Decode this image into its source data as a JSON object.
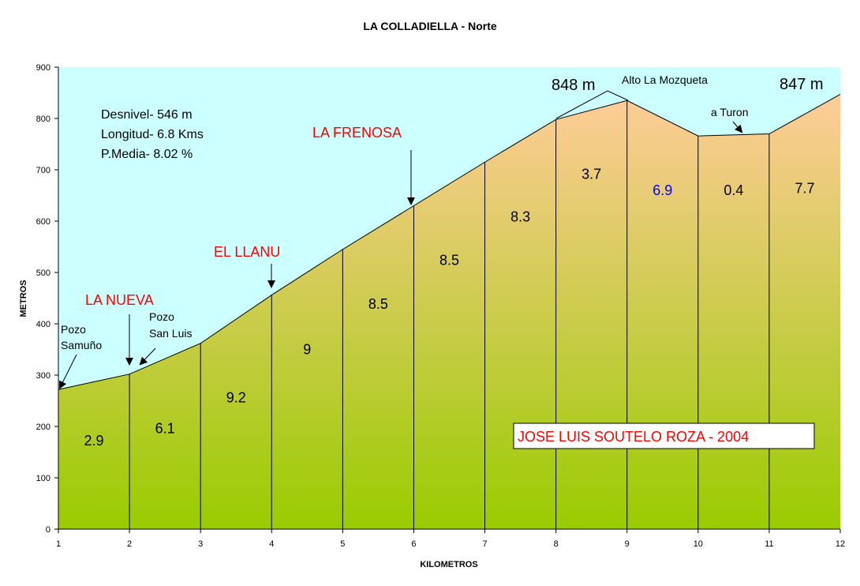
{
  "chart_data": {
    "type": "area",
    "title": "LA COLLADIELLA - Norte",
    "xlabel": "KILOMETROS",
    "ylabel": "METROS",
    "xlim": [
      1,
      12
    ],
    "ylim": [
      0,
      900
    ],
    "x_ticks": [
      "1",
      "2",
      "3",
      "4",
      "5",
      "6",
      "7",
      "8",
      "9",
      "10",
      "11",
      "12"
    ],
    "y_ticks": [
      "0",
      "100",
      "200",
      "300",
      "400",
      "500",
      "600",
      "700",
      "800",
      "900"
    ],
    "x": [
      1,
      2,
      3,
      4,
      5,
      6,
      7,
      8,
      9,
      10,
      11,
      12
    ],
    "elevation": [
      272,
      302,
      362,
      456,
      545,
      630,
      715,
      798,
      835,
      766,
      770,
      847
    ],
    "segment_gradients": [
      "2.9",
      "6.1",
      "9.2",
      "9",
      "8.5",
      "8.5",
      "8.3",
      "3.7",
      "6.9",
      "0.4",
      "7.7"
    ],
    "highlight_color": "#0000ff",
    "grid": false,
    "colors": {
      "sky": "#ccffff",
      "fill_top": "#ffcc99",
      "fill_bottom": "#99cc00",
      "place_labels": "#ff0000"
    }
  },
  "stats": {
    "desnivel": "Desnivel- 546 m",
    "longitud": "Longitud- 6.8 Kms",
    "pendiente": "P.Media- 8.02 %"
  },
  "places": {
    "la_nueva": "LA NUEVA",
    "el_llanu": "EL LLANU",
    "la_frenosa": "LA FRENOSA"
  },
  "notes": {
    "pozo_samuno_1": "Pozo",
    "pozo_samuno_2": "Samuño",
    "pozo_san_luis_1": "Pozo",
    "pozo_san_luis_2": "San Luis",
    "alto": "Alto La Mozqueta",
    "a_turon": "a Turon",
    "peak_848": "848 m",
    "peak_847": "847 m"
  },
  "credit": "JOSE LUIS SOUTELO ROZA - 2004"
}
